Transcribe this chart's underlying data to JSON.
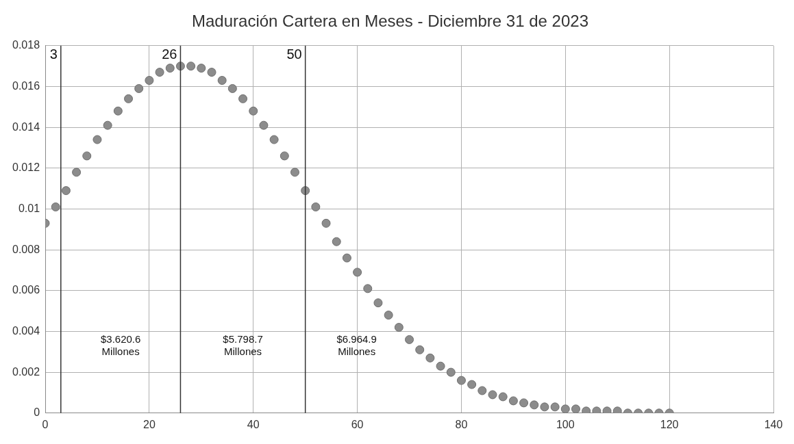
{
  "chart_data": {
    "type": "scatter",
    "title": "Maduración Cartera en Meses - Diciembre 31 de 2023",
    "x": [
      0,
      2,
      4,
      6,
      8,
      10,
      12,
      14,
      16,
      18,
      20,
      22,
      24,
      26,
      28,
      30,
      32,
      34,
      36,
      38,
      40,
      42,
      44,
      46,
      48,
      50,
      52,
      54,
      56,
      58,
      60,
      62,
      64,
      66,
      68,
      70,
      72,
      74,
      76,
      78,
      80,
      82,
      84,
      86,
      88,
      90,
      92,
      94,
      96,
      98,
      100,
      102,
      104,
      106,
      108,
      110,
      112,
      114,
      116,
      118,
      120
    ],
    "series": [
      {
        "color": "#8c8c8c",
        "values": [
          0.0093,
          0.0101,
          0.0109,
          0.0118,
          0.0126,
          0.0134,
          0.0141,
          0.0148,
          0.0154,
          0.0159,
          0.0163,
          0.0167,
          0.0169,
          0.017,
          0.017,
          0.0169,
          0.0167,
          0.0163,
          0.0159,
          0.0154,
          0.0148,
          0.0141,
          0.0134,
          0.0126,
          0.0118,
          0.0109,
          0.0101,
          0.0093,
          0.0084,
          0.0076,
          0.0069,
          0.0061,
          0.0054,
          0.0048,
          0.0042,
          0.0036,
          0.0031,
          0.0027,
          0.0023,
          0.002,
          0.0016,
          0.0014,
          0.0011,
          0.0009,
          0.0008,
          0.0006,
          0.0005,
          0.0004,
          0.0003,
          0.0003,
          0.0002,
          0.0002,
          0.0001,
          0.0001,
          0.0001,
          0.0001,
          0,
          0,
          0,
          0,
          0
        ]
      }
    ],
    "xlim": [
      0,
      140
    ],
    "xticks": [
      0,
      20,
      40,
      60,
      80,
      100,
      120,
      140
    ],
    "ylim": [
      0,
      0.018
    ],
    "yticks": [
      0,
      0.002,
      0.004,
      0.006,
      0.008,
      0.01,
      0.012,
      0.014,
      0.016,
      0.018
    ],
    "grid": true,
    "marker": "circle",
    "legend": false,
    "ref_lines": [
      {
        "axis": "x",
        "value": 3,
        "label": "3",
        "color": "#333333"
      },
      {
        "axis": "x",
        "value": 26,
        "label": "26",
        "color": "#333333"
      },
      {
        "axis": "x",
        "value": 50,
        "label": "50",
        "color": "#333333"
      }
    ],
    "annotations": [
      "$3.620.6\nMillones",
      "$5.798.7\nMillones",
      "$6.964.9\nMillones"
    ]
  }
}
